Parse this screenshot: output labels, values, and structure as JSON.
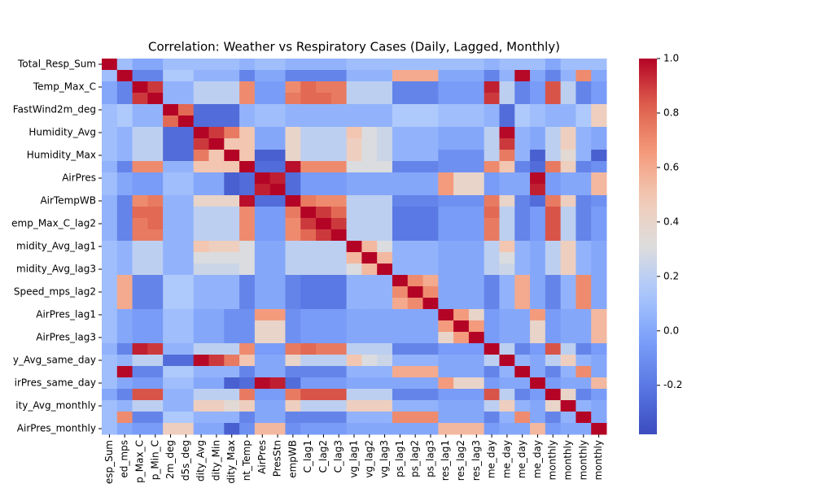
{
  "chart_data": {
    "type": "heatmap",
    "title": "Correlation: Weather vs Respiratory Cases (Daily, Lagged, Monthly)",
    "colormap": "coolwarm",
    "clim": [
      -0.38,
      1.0
    ],
    "cticks": [
      -0.2,
      {
        "value": 0.0,
        "label": "0.0"
      },
      0.2,
      0.4,
      0.6,
      0.8,
      {
        "value": 1.0,
        "label": "1.0"
      }
    ],
    "x_categories": [
      "esp_Sum",
      "ed_mps",
      "p_Max_C",
      "p_Min_C",
      "2m_deg",
      "d5s_deg",
      "dity_Avg",
      "dity_Min",
      "dity_Max",
      "nt_Temp",
      "AirPres",
      "PresStn",
      "empWB",
      "C_lag1",
      "C_lag2",
      "C_lag3",
      "vg_lag1",
      "vg_lag2",
      "vg_lag3",
      "ps_lag1",
      "ps_lag2",
      "ps_lag3",
      "res_lag1",
      "res_lag2",
      "res_lag3",
      "me_day",
      "me_day",
      "me_day",
      "me_day",
      "monthly",
      "monthly",
      "monthly",
      "monthly"
    ],
    "y_categories": [
      "Total_Resp_Sum",
      null,
      "Temp_Max_C",
      null,
      "FastWind2m_deg",
      null,
      "Humidity_Avg",
      null,
      "Humidity_Max",
      null,
      "AirPres",
      null,
      "AirTempWB",
      null,
      "emp_Max_C_lag2",
      null,
      "midity_Avg_lag1",
      null,
      "midity_Avg_lag3",
      null,
      "Speed_mps_lag2",
      null,
      "AirPres_lag1",
      null,
      "AirPres_lag3",
      null,
      "y_Avg_same_day",
      null,
      "irPres_same_day",
      null,
      "ity_Avg_monthly",
      null,
      "AirPres_monthly"
    ],
    "z": [
      [
        1,
        0.1,
        0,
        0,
        0.1,
        0.1,
        0.1,
        0.1,
        0.1,
        0.05,
        0.1,
        0.1,
        0.05,
        0.05,
        0.05,
        0.05,
        0.1,
        0.1,
        0.1,
        0.1,
        0.1,
        0.1,
        0.1,
        0.1,
        0.1,
        0.05,
        0.1,
        0.1,
        0.1,
        0,
        0.1,
        0.1,
        0.1
      ],
      [
        0.1,
        1,
        -0.15,
        -0.15,
        0.15,
        0.15,
        0.05,
        0.05,
        0.05,
        -0.15,
        0,
        0,
        -0.15,
        -0.15,
        -0.15,
        -0.15,
        0.05,
        0.05,
        0.05,
        0.6,
        0.6,
        0.6,
        0,
        0,
        0,
        -0.15,
        0.05,
        0.99,
        0,
        -0.15,
        0.05,
        0.7,
        0
      ],
      [
        0,
        -0.15,
        1,
        0.9,
        0.05,
        0.05,
        0.2,
        0.2,
        0.2,
        0.7,
        -0.05,
        -0.05,
        0.7,
        0.8,
        0.75,
        0.75,
        0.2,
        0.2,
        0.2,
        -0.15,
        -0.15,
        -0.15,
        -0.05,
        -0.05,
        -0.05,
        0.95,
        0.2,
        -0.15,
        -0.05,
        0.85,
        0.2,
        -0.15,
        -0.05
      ],
      [
        0,
        -0.15,
        0.9,
        1,
        0.05,
        0.05,
        0.2,
        0.2,
        0.2,
        0.7,
        -0.05,
        -0.05,
        0.75,
        0.8,
        0.8,
        0.75,
        0.2,
        0.2,
        0.2,
        -0.15,
        -0.15,
        -0.15,
        -0.05,
        -0.05,
        -0.05,
        0.9,
        0.2,
        -0.15,
        -0.05,
        0.85,
        0.2,
        -0.15,
        -0.05
      ],
      [
        0.1,
        0.15,
        0.05,
        0.05,
        1,
        0.8,
        -0.25,
        -0.25,
        -0.25,
        0.05,
        0.1,
        0.1,
        0.05,
        0.05,
        0.05,
        0.05,
        0.05,
        0.05,
        0.05,
        0.15,
        0.15,
        0.15,
        0.1,
        0.1,
        0.1,
        0.05,
        -0.25,
        0.15,
        0.1,
        0.05,
        0.05,
        0.15,
        0.45
      ],
      [
        0.1,
        0.15,
        0.05,
        0.05,
        0.8,
        1,
        -0.25,
        -0.25,
        -0.25,
        0.05,
        0.1,
        0.1,
        0.05,
        0.05,
        0.05,
        0.05,
        0.05,
        0.05,
        0.05,
        0.15,
        0.15,
        0.15,
        0.1,
        0.1,
        0.1,
        0.05,
        -0.25,
        0.15,
        0.1,
        0.05,
        0.05,
        0.15,
        0.45
      ],
      [
        0.1,
        0.05,
        0.2,
        0.2,
        -0.25,
        -0.25,
        1,
        0.9,
        0.75,
        0.5,
        0,
        0,
        0.4,
        0.2,
        0.2,
        0.2,
        0.5,
        0.3,
        0.25,
        0.05,
        0.05,
        0.05,
        0,
        0,
        0,
        0.2,
        0.99,
        0.05,
        0,
        0.2,
        0.45,
        0.05,
        0
      ],
      [
        0.1,
        0.05,
        0.2,
        0.2,
        -0.25,
        -0.25,
        0.9,
        1,
        0.5,
        0.5,
        0,
        0,
        0.4,
        0.2,
        0.2,
        0.2,
        0.45,
        0.3,
        0.25,
        0.05,
        0.05,
        0.05,
        0,
        0,
        0,
        0.2,
        0.9,
        0.05,
        0,
        0.2,
        0.45,
        0.05,
        0
      ],
      [
        0.1,
        0.05,
        0.2,
        0.2,
        -0.25,
        -0.25,
        0.75,
        0.5,
        1,
        0.5,
        -0.3,
        -0.3,
        0.4,
        0.2,
        0.2,
        0.2,
        0.45,
        0.3,
        0.25,
        0.05,
        0.05,
        0.05,
        -0.1,
        -0.1,
        -0.1,
        0.2,
        0.75,
        0.05,
        -0.3,
        0.2,
        0.35,
        0.05,
        -0.3
      ],
      [
        0.05,
        -0.15,
        0.7,
        0.7,
        0.05,
        0.05,
        0.5,
        0.5,
        0.5,
        1,
        -0.25,
        -0.25,
        0.98,
        0.7,
        0.7,
        0.7,
        0.3,
        0.3,
        0.3,
        -0.15,
        -0.15,
        -0.15,
        -0.1,
        -0.1,
        -0.1,
        0.7,
        0.5,
        -0.15,
        -0.25,
        0.75,
        0.45,
        -0.15,
        -0.1
      ],
      [
        0.1,
        0,
        -0.05,
        -0.05,
        0.1,
        0.1,
        0,
        0,
        -0.3,
        -0.25,
        1,
        0.95,
        -0.25,
        -0.05,
        -0.05,
        -0.05,
        0,
        0,
        0,
        0,
        0,
        0,
        0.65,
        0.4,
        0.4,
        -0.05,
        0,
        0,
        0.99,
        -0.05,
        0,
        0,
        0.55
      ],
      [
        0.1,
        0,
        -0.05,
        -0.05,
        0.1,
        0.1,
        0,
        0,
        -0.3,
        -0.25,
        0.95,
        1,
        -0.25,
        -0.05,
        -0.05,
        -0.05,
        0,
        0,
        0,
        0,
        0,
        0,
        0.65,
        0.4,
        0.4,
        -0.05,
        0,
        0,
        0.95,
        -0.05,
        0,
        0,
        0.55
      ],
      [
        0.05,
        -0.15,
        0.7,
        0.75,
        0.05,
        0.05,
        0.4,
        0.4,
        0.4,
        0.98,
        -0.25,
        -0.25,
        1,
        0.75,
        0.7,
        0.7,
        0.2,
        0.2,
        0.2,
        -0.15,
        -0.15,
        -0.15,
        -0.1,
        -0.1,
        -0.1,
        0.75,
        0.4,
        -0.15,
        -0.25,
        0.75,
        0.45,
        -0.15,
        -0.1
      ],
      [
        0.05,
        -0.15,
        0.8,
        0.8,
        0.05,
        0.05,
        0.2,
        0.2,
        0.2,
        0.7,
        -0.05,
        -0.05,
        0.75,
        1,
        0.9,
        0.8,
        0.2,
        0.2,
        0.2,
        -0.2,
        -0.2,
        -0.2,
        -0.05,
        -0.05,
        -0.05,
        0.8,
        0.2,
        -0.15,
        -0.05,
        0.85,
        0.2,
        -0.15,
        -0.05
      ],
      [
        0.05,
        -0.15,
        0.75,
        0.8,
        0.05,
        0.05,
        0.2,
        0.2,
        0.2,
        0.7,
        -0.05,
        -0.05,
        0.7,
        0.9,
        1,
        0.9,
        0.2,
        0.2,
        0.2,
        -0.2,
        -0.2,
        -0.2,
        -0.05,
        -0.05,
        -0.05,
        0.75,
        0.2,
        -0.15,
        -0.05,
        0.85,
        0.2,
        -0.15,
        -0.05
      ],
      [
        0.05,
        -0.15,
        0.75,
        0.75,
        0.05,
        0.05,
        0.2,
        0.2,
        0.2,
        0.7,
        -0.05,
        -0.05,
        0.7,
        0.8,
        0.9,
        1,
        0.2,
        0.2,
        0.2,
        -0.2,
        -0.2,
        -0.2,
        -0.05,
        -0.05,
        -0.05,
        0.75,
        0.2,
        -0.15,
        -0.05,
        0.85,
        0.2,
        -0.15,
        -0.05
      ],
      [
        0.1,
        0.05,
        0.2,
        0.2,
        0.05,
        0.05,
        0.5,
        0.45,
        0.45,
        0.3,
        0,
        0,
        0.2,
        0.2,
        0.2,
        0.2,
        1,
        0.55,
        0.3,
        0.05,
        0.05,
        0.05,
        0,
        0,
        0,
        0.2,
        0.5,
        0.05,
        0,
        0.2,
        0.45,
        0.05,
        0
      ],
      [
        0.1,
        0.05,
        0.2,
        0.2,
        0.05,
        0.05,
        0.3,
        0.3,
        0.3,
        0.3,
        0,
        0,
        0.2,
        0.2,
        0.2,
        0.2,
        0.55,
        1,
        0.55,
        0.05,
        0.05,
        0.05,
        0,
        0,
        0,
        0.2,
        0.3,
        0.05,
        0,
        0.2,
        0.45,
        0.05,
        0
      ],
      [
        0.1,
        0.05,
        0.2,
        0.2,
        0.05,
        0.05,
        0.25,
        0.25,
        0.25,
        0.3,
        0,
        0,
        0.2,
        0.2,
        0.2,
        0.2,
        0.3,
        0.55,
        1,
        0.05,
        0.05,
        0.05,
        0,
        0,
        0,
        0.2,
        0.25,
        0.05,
        0,
        0.2,
        0.45,
        0.05,
        0
      ],
      [
        0.1,
        0.6,
        -0.15,
        -0.15,
        0.15,
        0.15,
        0.05,
        0.05,
        0.05,
        -0.15,
        0,
        0,
        -0.15,
        -0.2,
        -0.2,
        -0.2,
        0.05,
        0.05,
        0.05,
        1,
        0.7,
        0.6,
        0,
        0,
        0,
        -0.15,
        0.05,
        0.6,
        0,
        -0.15,
        0.05,
        0.7,
        0
      ],
      [
        0.1,
        0.6,
        -0.15,
        -0.15,
        0.15,
        0.15,
        0.05,
        0.05,
        0.05,
        -0.15,
        0,
        0,
        -0.15,
        -0.2,
        -0.2,
        -0.2,
        0.05,
        0.05,
        0.05,
        0.7,
        1,
        0.7,
        0,
        0,
        0,
        -0.15,
        0.05,
        0.6,
        0,
        -0.15,
        0.05,
        0.7,
        0
      ],
      [
        0.1,
        0.6,
        -0.15,
        -0.15,
        0.15,
        0.15,
        0.05,
        0.05,
        0.05,
        -0.15,
        0,
        0,
        -0.15,
        -0.2,
        -0.2,
        -0.2,
        0.05,
        0.05,
        0.05,
        0.6,
        0.7,
        1,
        0,
        0,
        0,
        -0.15,
        0.05,
        0.6,
        0,
        -0.15,
        0.05,
        0.7,
        0
      ],
      [
        0.1,
        0,
        -0.05,
        -0.05,
        0.1,
        0.1,
        0,
        0,
        -0.1,
        -0.1,
        0.65,
        0.65,
        -0.1,
        -0.05,
        -0.05,
        -0.05,
        0,
        0,
        0,
        0,
        0,
        0,
        1,
        0.65,
        0.4,
        -0.05,
        0,
        0,
        0.65,
        -0.05,
        0,
        0,
        0.55
      ],
      [
        0.1,
        0,
        -0.05,
        -0.05,
        0.1,
        0.1,
        0,
        0,
        -0.1,
        -0.1,
        0.4,
        0.4,
        -0.1,
        -0.05,
        -0.05,
        -0.05,
        0,
        0,
        0,
        0,
        0,
        0,
        0.65,
        1,
        0.65,
        -0.05,
        0,
        0,
        0.4,
        -0.05,
        0,
        0,
        0.55
      ],
      [
        0.1,
        0,
        -0.05,
        -0.05,
        0.1,
        0.1,
        0,
        0,
        -0.1,
        -0.1,
        0.4,
        0.4,
        -0.1,
        -0.05,
        -0.05,
        -0.05,
        0,
        0,
        0,
        0,
        0,
        0,
        0.4,
        0.65,
        1,
        -0.05,
        0,
        0,
        0.4,
        -0.05,
        0,
        0,
        0.55
      ],
      [
        0.05,
        -0.15,
        0.95,
        0.9,
        0.05,
        0.05,
        0.2,
        0.2,
        0.2,
        0.7,
        -0.05,
        -0.05,
        0.75,
        0.8,
        0.75,
        0.75,
        0.2,
        0.2,
        0.2,
        -0.15,
        -0.15,
        -0.15,
        -0.05,
        -0.05,
        -0.05,
        1,
        0.2,
        -0.15,
        -0.05,
        0.85,
        0.2,
        -0.15,
        -0.05
      ],
      [
        0.1,
        0.05,
        0.2,
        0.2,
        -0.25,
        -0.25,
        0.99,
        0.9,
        0.75,
        0.5,
        0,
        0,
        0.4,
        0.2,
        0.2,
        0.2,
        0.5,
        0.3,
        0.25,
        0.05,
        0.05,
        0.05,
        0,
        0,
        0,
        0.2,
        1,
        0.05,
        0,
        0.2,
        0.45,
        0.05,
        0
      ],
      [
        0.1,
        0.99,
        -0.15,
        -0.15,
        0.15,
        0.15,
        0.05,
        0.05,
        0.05,
        -0.15,
        0,
        0,
        -0.15,
        -0.15,
        -0.15,
        -0.15,
        0.05,
        0.05,
        0.05,
        0.6,
        0.6,
        0.6,
        0,
        0,
        0,
        -0.15,
        0.05,
        1,
        0,
        -0.15,
        0.05,
        0.7,
        0
      ],
      [
        0.1,
        0,
        -0.05,
        -0.05,
        0.1,
        0.1,
        0,
        0,
        -0.3,
        -0.25,
        0.99,
        0.95,
        -0.25,
        -0.05,
        -0.05,
        -0.05,
        0,
        0,
        0,
        0,
        0,
        0,
        0.65,
        0.4,
        0.4,
        -0.05,
        0,
        0,
        1,
        -0.05,
        0,
        0,
        0.55
      ],
      [
        0,
        -0.15,
        0.85,
        0.85,
        0.05,
        0.05,
        0.2,
        0.2,
        0.2,
        0.75,
        -0.05,
        -0.05,
        0.75,
        0.85,
        0.85,
        0.85,
        0.2,
        0.2,
        0.2,
        -0.15,
        -0.15,
        -0.15,
        -0.05,
        -0.05,
        -0.05,
        0.85,
        0.2,
        -0.15,
        -0.05,
        1,
        0.4,
        -0.15,
        -0.05
      ],
      [
        0.1,
        0.05,
        0.2,
        0.2,
        0.05,
        0.05,
        0.45,
        0.45,
        0.35,
        0.45,
        0,
        0,
        0.45,
        0.2,
        0.2,
        0.2,
        0.45,
        0.45,
        0.45,
        0.05,
        0.05,
        0.05,
        0,
        0,
        0,
        0.2,
        0.45,
        0.05,
        0,
        0.4,
        1,
        0.05,
        0
      ],
      [
        0.1,
        0.7,
        -0.15,
        -0.15,
        0.15,
        0.15,
        0.05,
        0.05,
        0.05,
        -0.15,
        0,
        0,
        -0.15,
        -0.15,
        -0.15,
        -0.15,
        0.05,
        0.05,
        0.05,
        0.7,
        0.7,
        0.7,
        0,
        0,
        0,
        -0.15,
        0.05,
        0.7,
        0,
        -0.15,
        0.05,
        1,
        0
      ],
      [
        0.1,
        0,
        -0.05,
        -0.05,
        0.45,
        0.45,
        0,
        0,
        -0.3,
        -0.1,
        0.55,
        0.55,
        -0.1,
        -0.05,
        -0.05,
        -0.05,
        0,
        0,
        0,
        0,
        0,
        0,
        0.55,
        0.55,
        0.55,
        -0.05,
        0,
        0,
        0.55,
        -0.05,
        0,
        0,
        1
      ]
    ]
  }
}
